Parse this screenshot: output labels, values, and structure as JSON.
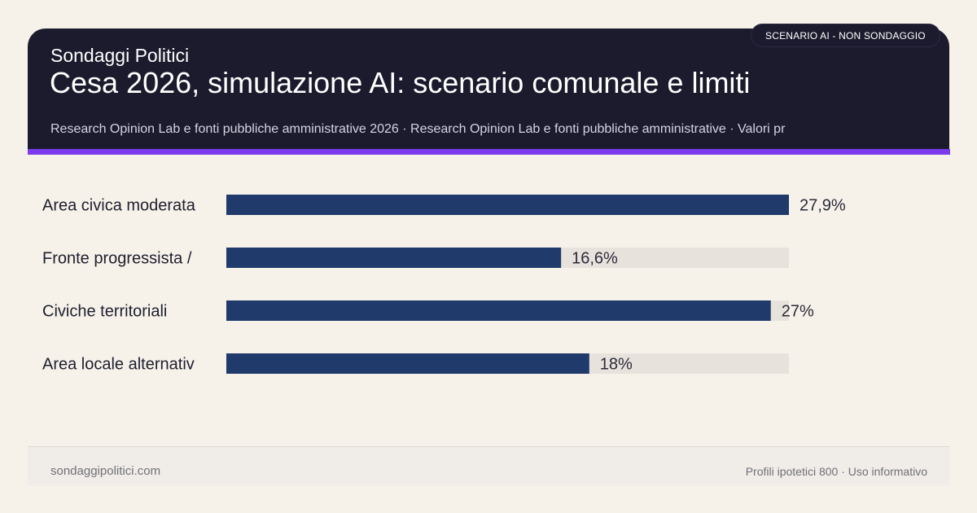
{
  "header": {
    "brand": "Sondaggi Politici",
    "title": "Cesa 2026, simulazione AI: scenario comunale e limiti",
    "subtitle": "Research Opinion Lab e fonti pubbliche amministrative 2026 · Research Opinion Lab e fonti pubbliche amministrative · Valori pr",
    "badge": "SCENARIO AI - NON SONDAGGIO"
  },
  "colors": {
    "header_bg": "#1c1b2e",
    "accent": "#7c3aed",
    "bar": "#1f3a6b",
    "track": "#e8e2dc",
    "background": "#f6f2ea"
  },
  "chart_data": {
    "type": "bar",
    "orientation": "horizontal",
    "categories": [
      "Area civica moderata",
      "Fronte progressista /",
      "Civiche territoriali",
      "Area locale alternativ"
    ],
    "values": [
      27.9,
      16.6,
      27,
      18
    ],
    "value_labels": [
      "27,9%",
      "16,6%",
      "27%",
      "18%"
    ],
    "xlim": [
      0,
      27.9
    ],
    "unit": "%",
    "title": "",
    "xlabel": "",
    "ylabel": "",
    "grid": false,
    "legend": "none"
  },
  "footer": {
    "left": "sondaggipolitici.com",
    "right": "Profili ipotetici 800 · Uso informativo"
  }
}
